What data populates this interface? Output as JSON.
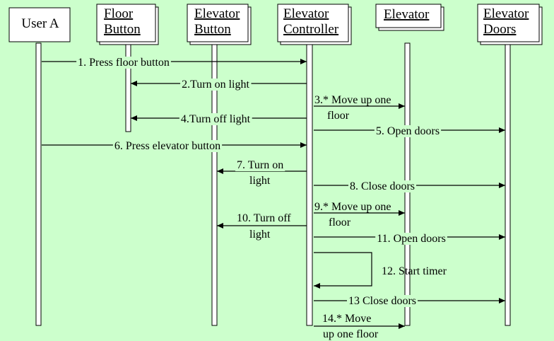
{
  "diagram": {
    "type": "sequence",
    "objects": [
      {
        "id": "user",
        "lines": [
          "User A"
        ],
        "underlined": false
      },
      {
        "id": "floor_button",
        "lines": [
          "Floor",
          "Button"
        ],
        "underlined": true
      },
      {
        "id": "elevator_button",
        "lines": [
          "Elevator",
          "Button"
        ],
        "underlined": true
      },
      {
        "id": "elevator_controller",
        "lines": [
          "Elevator",
          "Controller"
        ],
        "underlined": true
      },
      {
        "id": "elevator",
        "lines": [
          "Elevator"
        ],
        "underlined": true
      },
      {
        "id": "elevator_doors",
        "lines": [
          "Elevator",
          "Doors"
        ],
        "underlined": true
      }
    ],
    "messages": [
      {
        "from": "user",
        "to": "elevator_controller",
        "lines": [
          "1. Press floor button"
        ]
      },
      {
        "from": "elevator_controller",
        "to": "floor_button",
        "lines": [
          "2.Turn on light"
        ]
      },
      {
        "from": "elevator_controller",
        "to": "elevator",
        "lines": [
          "3.* Move up one",
          "floor"
        ]
      },
      {
        "from": "elevator_controller",
        "to": "floor_button",
        "lines": [
          "4.Turn off light"
        ]
      },
      {
        "from": "elevator_controller",
        "to": "elevator_doors",
        "lines": [
          "5. Open doors"
        ]
      },
      {
        "from": "user",
        "to": "elevator_controller",
        "lines": [
          "6. Press elevator button"
        ]
      },
      {
        "from": "elevator_controller",
        "to": "elevator_button",
        "lines": [
          "7. Turn on",
          "light"
        ]
      },
      {
        "from": "elevator_controller",
        "to": "elevator_doors",
        "lines": [
          "8. Close doors"
        ]
      },
      {
        "from": "elevator_controller",
        "to": "elevator",
        "lines": [
          "9.* Move up one",
          "floor"
        ]
      },
      {
        "from": "elevator_controller",
        "to": "elevator_button",
        "lines": [
          "10. Turn off",
          "light"
        ]
      },
      {
        "from": "elevator_controller",
        "to": "elevator_doors",
        "lines": [
          "11. Open doors"
        ]
      },
      {
        "from": "elevator_controller",
        "to": "elevator_controller",
        "lines": [
          "12. Start timer"
        ]
      },
      {
        "from": "elevator_controller",
        "to": "elevator_doors",
        "lines": [
          "13 Close doors"
        ]
      },
      {
        "from": "elevator_controller",
        "to": "elevator",
        "lines": [
          "14.* Move",
          "up one  floor"
        ]
      }
    ]
  },
  "colors": {
    "background": "#ccffcc",
    "box": "#ffffff",
    "line": "#000000"
  }
}
